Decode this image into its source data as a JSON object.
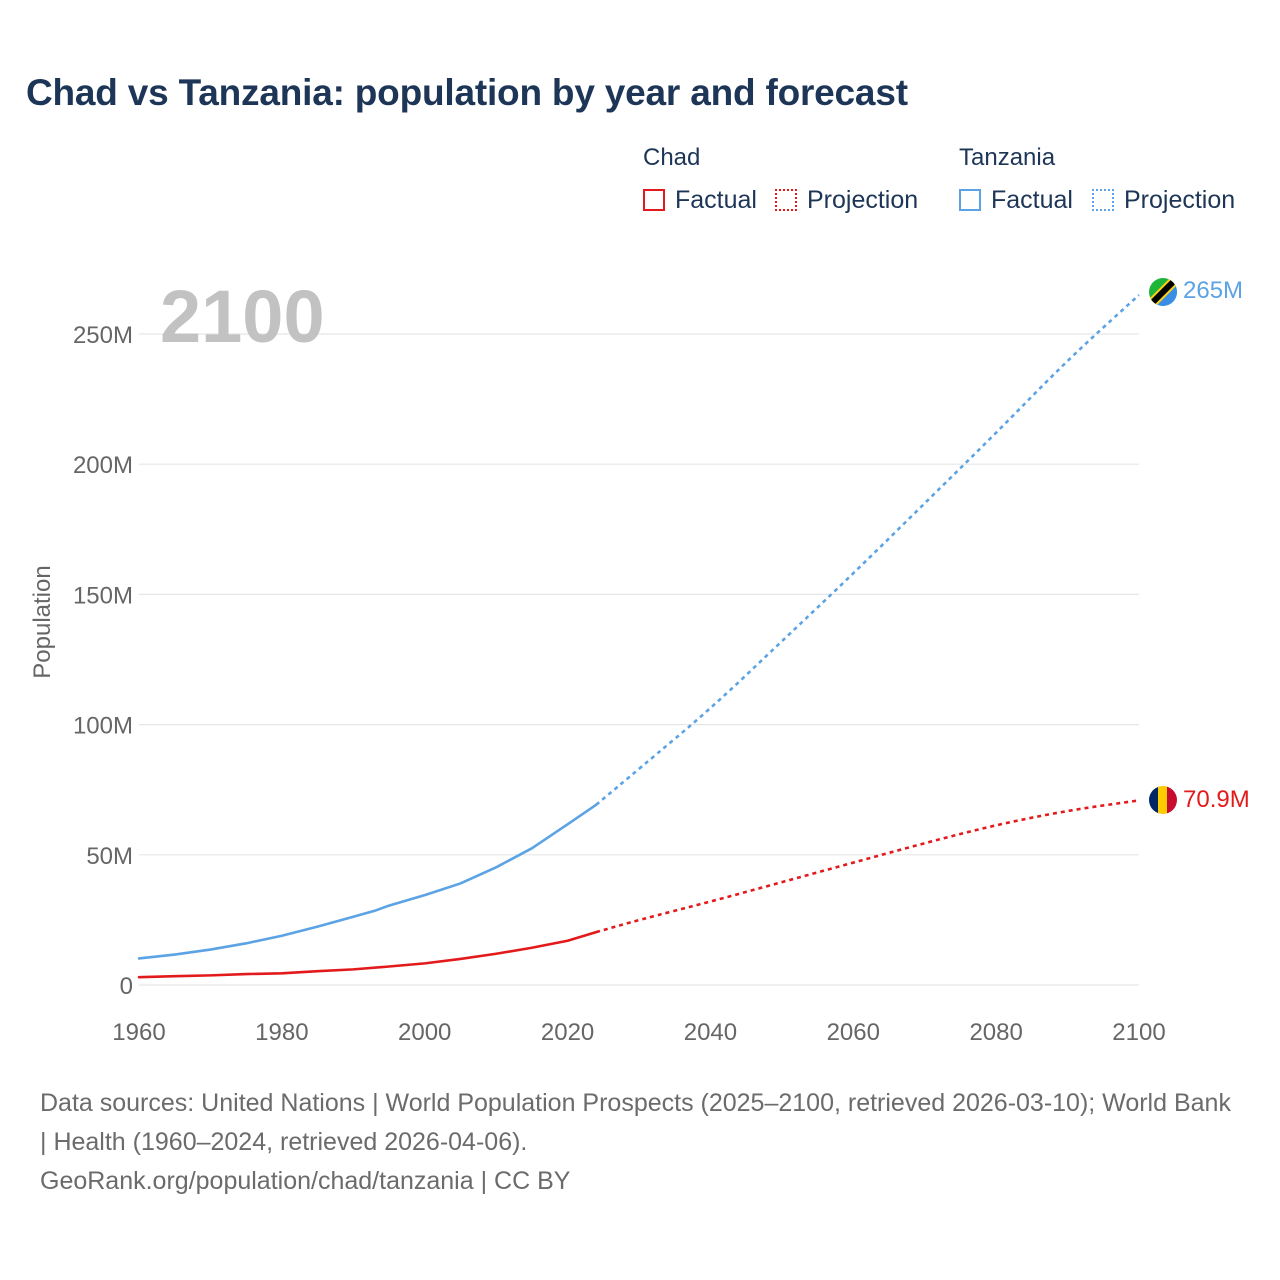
{
  "title": "Chad vs Tanzania: population by year and forecast",
  "legend": {
    "chad": {
      "title": "Chad",
      "factual": "Factual",
      "projection": "Projection"
    },
    "tanzania": {
      "title": "Tanzania",
      "factual": "Factual",
      "projection": "Projection"
    }
  },
  "colors": {
    "chad": "#e31a1c",
    "tanzania": "#5ba3e4",
    "grid": "#e6e6e6",
    "year": "#c2c2c2"
  },
  "year_label": "2100",
  "chart_data": {
    "type": "line",
    "title": "Chad vs Tanzania: population by year and forecast",
    "xlabel": "",
    "ylabel": "Population",
    "xlim": [
      1960,
      2100
    ],
    "ylim": [
      0,
      265000000
    ],
    "x_ticks": [
      1960,
      1980,
      2000,
      2020,
      2040,
      2060,
      2080,
      2100
    ],
    "x_tick_labels": [
      "1960",
      "1980",
      "2000",
      "2020",
      "2040",
      "2060",
      "2080",
      "2100"
    ],
    "y_ticks": [
      0,
      50000000,
      100000000,
      150000000,
      200000000,
      250000000
    ],
    "y_tick_labels": [
      "0",
      "50M",
      "100M",
      "150M",
      "200M",
      "250M"
    ],
    "grid": true,
    "series": [
      {
        "name": "Tanzania",
        "end_label": "265M",
        "factual": {
          "x": [
            1960,
            1965,
            1970,
            1975,
            1980,
            1985,
            1990,
            1993,
            1995,
            2000,
            2005,
            2010,
            2015,
            2020,
            2024
          ],
          "y": [
            10200000,
            11700000,
            13600000,
            16000000,
            18900000,
            22400000,
            26200000,
            28500000,
            30500000,
            34500000,
            39000000,
            45200000,
            52500000,
            61700000,
            69200000
          ]
        },
        "projection": {
          "x": [
            2024,
            2030,
            2040,
            2050,
            2060,
            2070,
            2080,
            2090,
            2100
          ],
          "y": [
            69200000,
            83000000,
            106000000,
            132000000,
            158000000,
            185000000,
            212000000,
            240000000,
            265000000
          ]
        }
      },
      {
        "name": "Chad",
        "end_label": "70.9M",
        "factual": {
          "x": [
            1960,
            1965,
            1970,
            1975,
            1980,
            1985,
            1990,
            1995,
            2000,
            2005,
            2010,
            2015,
            2020,
            2024
          ],
          "y": [
            3000000,
            3400000,
            3700000,
            4200000,
            4500000,
            5300000,
            6000000,
            7100000,
            8300000,
            10000000,
            12000000,
            14300000,
            17000000,
            20300000
          ]
        },
        "projection": {
          "x": [
            2024,
            2030,
            2040,
            2050,
            2060,
            2070,
            2080,
            2090,
            2100
          ],
          "y": [
            20300000,
            25000000,
            32000000,
            39500000,
            47000000,
            54500000,
            61500000,
            67000000,
            70900000
          ]
        }
      }
    ]
  },
  "footer": {
    "sources": "Data sources: United Nations | World Population Prospects (2025–2100, retrieved 2026-03-10); World Bank | Health (1960–2024, retrieved 2026-04-06).",
    "credit": "GeoRank.org/population/chad/tanzania | CC BY"
  }
}
